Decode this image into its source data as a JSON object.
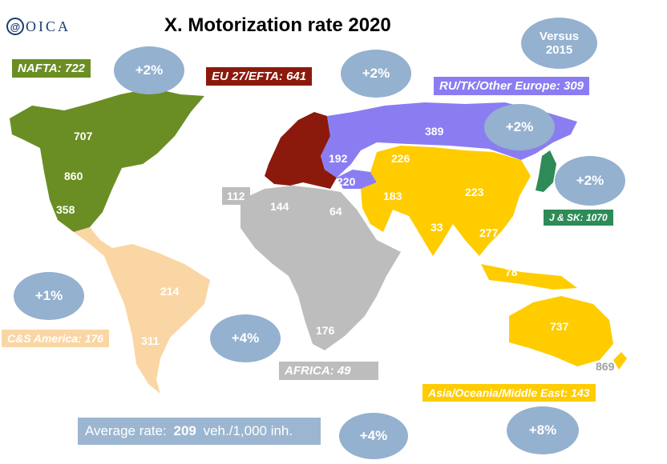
{
  "title": "X. Motorization rate 2020",
  "logo": {
    "mark": "@",
    "text": "OICA"
  },
  "versus": {
    "line1": "Versus",
    "line2": "2015"
  },
  "regions": {
    "nafta": {
      "label": "NAFTA: 722",
      "change": "+2%",
      "color": "#6a8e23"
    },
    "eu": {
      "label": "EU 27/EFTA: 641",
      "change": "+2%",
      "color": "#8b1a0d"
    },
    "ru": {
      "label": "RU/TK/Other Europe: 309",
      "change": "+2%",
      "color": "#8a7df2"
    },
    "jsk": {
      "label": "J & SK: 1070",
      "change": "+2%",
      "color": "#2e8b57"
    },
    "csa": {
      "label": "C&S America: 176",
      "change": "+1%",
      "color": "#fad6a5"
    },
    "africa": {
      "label": "AFRICA: 49",
      "change": "+4%",
      "color": "#bdbdbd"
    },
    "asia": {
      "label": "Asia/Oceania/Middle East: 143",
      "change": "+8%",
      "color": "#ffcc00"
    }
  },
  "map_values": {
    "canada": "707",
    "usa": "860",
    "mexico": "358",
    "brazil": "214",
    "argentina": "311",
    "morocco": "112",
    "algeria": "144",
    "egypt": "64",
    "south_africa": "176",
    "russia": "389",
    "ukraine": "192",
    "turkey": "220",
    "kazakhstan": "226",
    "iran": "183",
    "china": "223",
    "india": "33",
    "thailand": "277",
    "indonesia": "78",
    "australia": "737",
    "new_zealand": "869"
  },
  "average": {
    "prefix": "Average rate: ",
    "value": "209",
    "suffix": " veh./1,000 inh.",
    "change": "+4%"
  }
}
